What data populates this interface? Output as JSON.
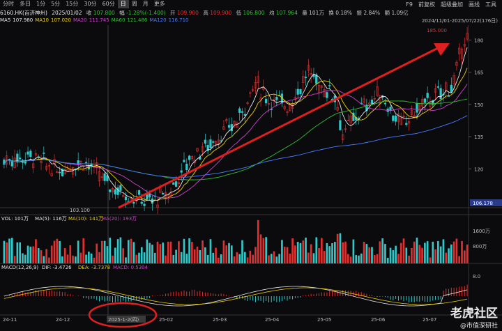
{
  "toolbar": {
    "items": [
      "分时",
      "多日",
      "1分",
      "5分",
      "15分",
      "30分",
      "60分",
      "日",
      "周",
      "月",
      "更多"
    ],
    "active_index": 7,
    "right": [
      "F9",
      "前复权",
      "超级叠加",
      "画线",
      "工具"
    ]
  },
  "quote": {
    "code": "6160.HK(百济神州)",
    "date": "2025/01/02",
    "close_label": "收",
    "close": "107.800",
    "change_label": "幅",
    "change": "-1.28%(-1.400)",
    "open_label": "开",
    "open": "109.900",
    "high_label": "高",
    "high": "109.900",
    "low_label": "低",
    "low": "106.800",
    "avg_label": "均",
    "avg": "107.964",
    "vol_label": "量",
    "vol": "101万",
    "turnover_label": "换",
    "turnover": "0.18%",
    "amp_label": "振",
    "amp": "2.84%",
    "amount_label": "额",
    "amount": "1.09亿"
  },
  "ma": [
    {
      "label": "MA5",
      "value": "107.980",
      "color": "#e8e8e8"
    },
    {
      "label": "MA10",
      "value": "107.020",
      "color": "#f0d000"
    },
    {
      "label": "MA20",
      "value": "111.745",
      "color": "#d040d0"
    },
    {
      "label": "MA60",
      "value": "121.486",
      "color": "#30c030"
    },
    {
      "label": "MA120",
      "value": "116.710",
      "color": "#4a7aff"
    }
  ],
  "range_label": "2024/11/01-2025/07/22(176日)",
  "colors": {
    "up": "#e03030",
    "down": "#30c8c8",
    "bg": "#0b0b0d",
    "arrow": "#e02020"
  },
  "price_axis": {
    "ticks": [
      "180",
      "165",
      "150",
      "135",
      "120"
    ]
  },
  "annotations": {
    "high": "185.000",
    "low": "103.100",
    "last_price": "106.178"
  },
  "volume": {
    "title": "VOL: 101万",
    "items": [
      {
        "label": "MA(5): 116万",
        "color": "#e8e8e8"
      },
      {
        "label": "MA(10): 141万",
        "color": "#f0d000"
      },
      {
        "label": "MA(20): 193万",
        "color": "#d040d0"
      }
    ],
    "ticks": [
      "1600万",
      "800万"
    ]
  },
  "macd": {
    "title": "MACD(12,26,9)",
    "dif": "DIF: -3.4726",
    "dea": "DEA: -3.7378",
    "macd": "MACD: 0.5304",
    "tick": "8.0"
  },
  "x_axis": {
    "labels": [
      "24-11",
      "24-12",
      "2025-1-2(四)",
      "25-02",
      "25-03",
      "25-04",
      "25-05",
      "25-06",
      "25-07"
    ]
  },
  "watermark": {
    "main": "老虎社区",
    "sub": "@市值深研社"
  },
  "chart_data": {
    "type": "candlestick",
    "x_range": [
      "2024/11/01",
      "2025/07/22"
    ],
    "y_range": [
      100,
      185
    ],
    "high": 185.0,
    "low": 103.1,
    "selected_date": "2025-1-2(四)"
  }
}
